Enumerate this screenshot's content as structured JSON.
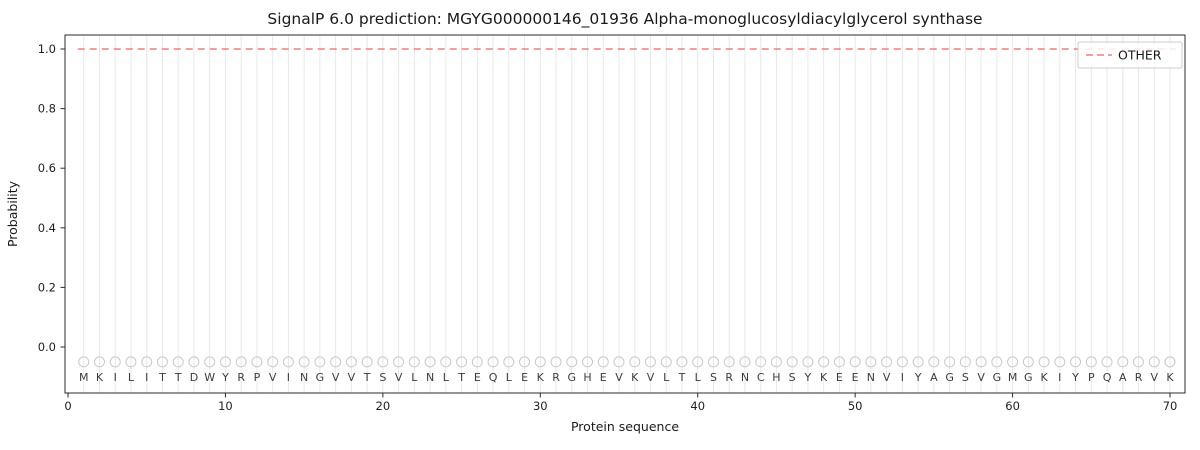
{
  "chart_data": {
    "type": "line",
    "title": "SignalP 6.0 prediction: MGYG000000146_01936 Alpha-monoglucosyldiacylglycerol synthase",
    "xlabel": "Protein sequence",
    "ylabel": "Probability",
    "xlim": [
      -0.2,
      71
    ],
    "ylim": [
      -0.154,
      1.047
    ],
    "x_ticks": [
      0,
      10,
      20,
      30,
      40,
      50,
      60,
      70
    ],
    "y_ticks": [
      0.0,
      0.2,
      0.4,
      0.6,
      0.8,
      1.0
    ],
    "grid": "vertical-line-per-residue",
    "sequence": "MKILITTDWYRPVINGVVTSVLNLTEQLEKRGHEVKVLTLSRNCHSYKEENVIYAGSVGMGKIYPQARVK",
    "series": [
      {
        "name": "OTHER",
        "style": "dashed",
        "color": "#f37e7e",
        "x_start": 1,
        "x_end": 70,
        "value": 1.0
      }
    ],
    "marker_row": {
      "shape": "open-circle",
      "y": -0.05,
      "color": "#c9c9c9"
    },
    "legend": {
      "position": "upper right",
      "entries": [
        {
          "label": "OTHER",
          "color": "#f37e7e",
          "style": "dashed"
        }
      ]
    },
    "colors": {
      "grid": "#e8e8e8",
      "marker": "#c9c9c9",
      "letter": "#3c3c3c",
      "axis": "#2b2b2b",
      "tick_label": "#1f1f1f",
      "background": "#ffffff"
    }
  }
}
